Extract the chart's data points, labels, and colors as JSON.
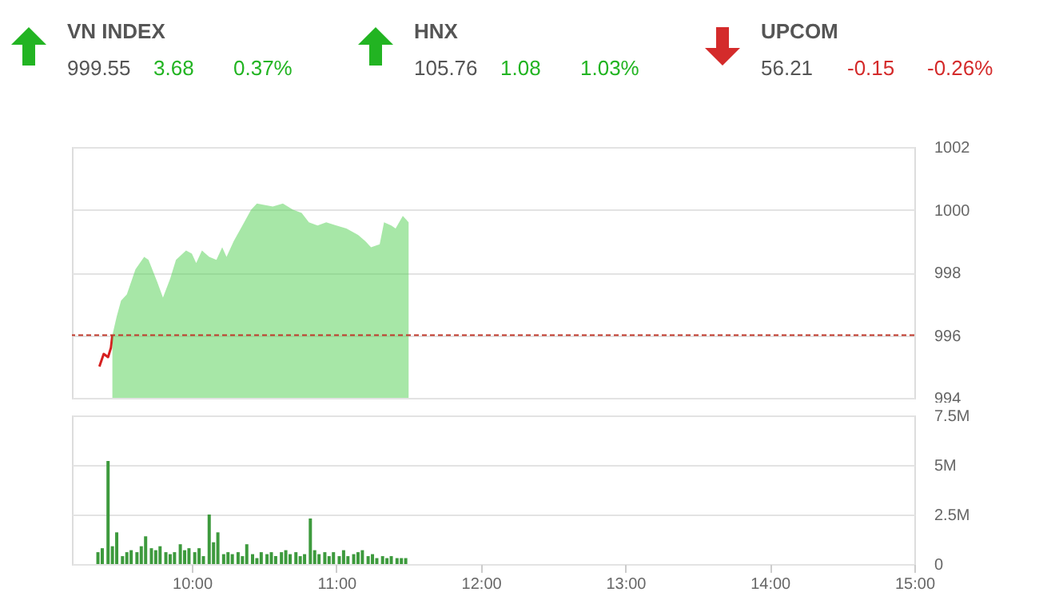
{
  "chart_data": [
    {
      "type": "other",
      "categories": [
        "VN INDEX",
        "HNX",
        "UPCOM"
      ],
      "data_labels": true,
      "series": [
        {
          "color": "#555555",
          "values": [
            999.55,
            105.76,
            56.21
          ]
        },
        {
          "colors": [
            "#22b422",
            "#22b422",
            "#d42b2b"
          ],
          "values": [
            3.68,
            1.08,
            -0.15
          ]
        },
        {
          "colors": [
            "#22b422",
            "#22b422",
            "#d42b2b"
          ],
          "values": [
            0.37,
            1.03,
            -0.26
          ],
          "value_labels": [
            "0.37%",
            "1.03%",
            "-0.26%"
          ]
        }
      ]
    },
    {
      "type": "area",
      "xlim": [
        9.17,
        15
      ],
      "ylim": [
        994,
        1002
      ],
      "yticks": [
        994,
        996,
        998,
        1000,
        1002
      ],
      "grid": "y",
      "tick_labels": "y",
      "ref_lines": [
        {
          "axis": "y",
          "value": 996,
          "color": "#c0392b",
          "line_style": "dashed"
        }
      ],
      "series": [
        {
          "type": "line",
          "color": "#d62020",
          "x": [
            9.36,
            9.39,
            9.42,
            9.44,
            9.45
          ],
          "values": [
            995.0,
            995.4,
            995.3,
            995.6,
            996.0
          ]
        },
        {
          "type": "area",
          "color": "#5fd35f",
          "x": [
            9.45,
            9.48,
            9.51,
            9.55,
            9.61,
            9.67,
            9.7,
            9.76,
            9.8,
            9.85,
            9.89,
            9.96,
            10.0,
            10.03,
            10.07,
            10.12,
            10.17,
            10.21,
            10.24,
            10.29,
            10.35,
            10.41,
            10.45,
            10.56,
            10.63,
            10.7,
            10.76,
            10.81,
            10.87,
            10.93,
            11.0,
            11.07,
            11.15,
            11.2,
            11.24,
            11.3,
            11.33,
            11.38,
            11.41,
            11.46,
            11.5
          ],
          "values": [
            996.0,
            996.6,
            997.1,
            997.3,
            998.1,
            998.5,
            998.4,
            997.7,
            997.2,
            997.8,
            998.4,
            998.7,
            998.6,
            998.3,
            998.7,
            998.5,
            998.4,
            998.8,
            998.5,
            999.0,
            999.5,
            1000.0,
            1000.2,
            1000.1,
            1000.2,
            1000.0,
            999.9,
            999.6,
            999.5,
            999.6,
            999.5,
            999.4,
            999.2,
            999.0,
            998.8,
            998.9,
            999.6,
            999.5,
            999.4,
            999.8,
            999.6
          ]
        }
      ]
    },
    {
      "type": "bar",
      "xlim": [
        9.17,
        15
      ],
      "xticks": [
        {
          "value": 10,
          "label": "10:00"
        },
        {
          "value": 11,
          "label": "11:00"
        },
        {
          "value": 12,
          "label": "12:00"
        },
        {
          "value": 13,
          "label": "13:00"
        },
        {
          "value": 14,
          "label": "14:00"
        },
        {
          "value": 15,
          "label": "15:00"
        }
      ],
      "ylim": [
        0,
        7.5
      ],
      "yticks": [
        0,
        {
          "value": 2.5,
          "label": "2.5M"
        },
        {
          "value": 5,
          "label": "5M"
        },
        {
          "value": 7.5,
          "label": "7.5M"
        }
      ],
      "grid": "y",
      "series": [
        {
          "color": "#3d9a3d",
          "x": [
            9.35,
            9.38,
            9.42,
            9.45,
            9.48,
            9.52,
            9.55,
            9.58,
            9.62,
            9.65,
            9.68,
            9.72,
            9.75,
            9.78,
            9.82,
            9.85,
            9.88,
            9.92,
            9.95,
            9.98,
            10.02,
            10.05,
            10.08,
            10.12,
            10.15,
            10.18,
            10.22,
            10.25,
            10.28,
            10.32,
            10.35,
            10.38,
            10.42,
            10.45,
            10.48,
            10.52,
            10.55,
            10.58,
            10.62,
            10.65,
            10.68,
            10.72,
            10.75,
            10.78,
            10.82,
            10.85,
            10.88,
            10.92,
            10.95,
            10.98,
            11.02,
            11.05,
            11.08,
            11.12,
            11.15,
            11.18,
            11.22,
            11.25,
            11.28,
            11.32,
            11.35,
            11.38,
            11.42,
            11.45,
            11.48
          ],
          "values": [
            0.6,
            0.8,
            5.2,
            0.9,
            1.6,
            0.4,
            0.6,
            0.7,
            0.6,
            0.9,
            1.4,
            0.8,
            0.7,
            0.9,
            0.6,
            0.5,
            0.6,
            1.0,
            0.7,
            0.8,
            0.6,
            0.8,
            0.4,
            2.5,
            1.1,
            1.6,
            0.5,
            0.6,
            0.5,
            0.6,
            0.4,
            1.0,
            0.5,
            0.3,
            0.6,
            0.5,
            0.6,
            0.4,
            0.6,
            0.7,
            0.5,
            0.6,
            0.4,
            0.5,
            2.3,
            0.7,
            0.5,
            0.6,
            0.4,
            0.6,
            0.4,
            0.7,
            0.4,
            0.5,
            0.6,
            0.7,
            0.4,
            0.5,
            0.3,
            0.4,
            0.3,
            0.4,
            0.3,
            0.3,
            0.3
          ]
        }
      ]
    }
  ]
}
